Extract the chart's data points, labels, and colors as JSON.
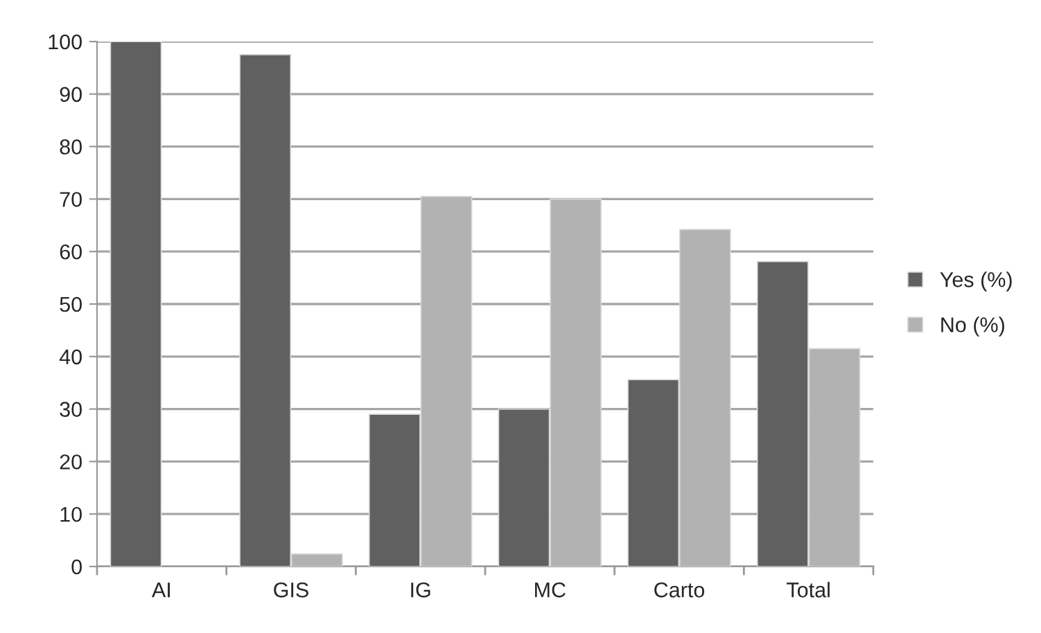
{
  "chart_data": {
    "type": "bar",
    "categories": [
      "AI",
      "GIS",
      "IG",
      "MC",
      "Carto",
      "Total"
    ],
    "series": [
      {
        "name": "Yes (%)",
        "color": "#606060",
        "values": [
          100,
          97.5,
          29,
          30,
          35.6,
          58.1
        ]
      },
      {
        "name": "No (%)",
        "color": "#b2b2b2",
        "values": [
          null,
          2.4,
          70.5,
          70,
          64.2,
          41.5
        ]
      }
    ],
    "ylim": [
      0,
      100
    ],
    "yticks": [
      0,
      10,
      20,
      30,
      40,
      50,
      60,
      70,
      80,
      90,
      100
    ],
    "grid": "y",
    "legend": "right"
  }
}
